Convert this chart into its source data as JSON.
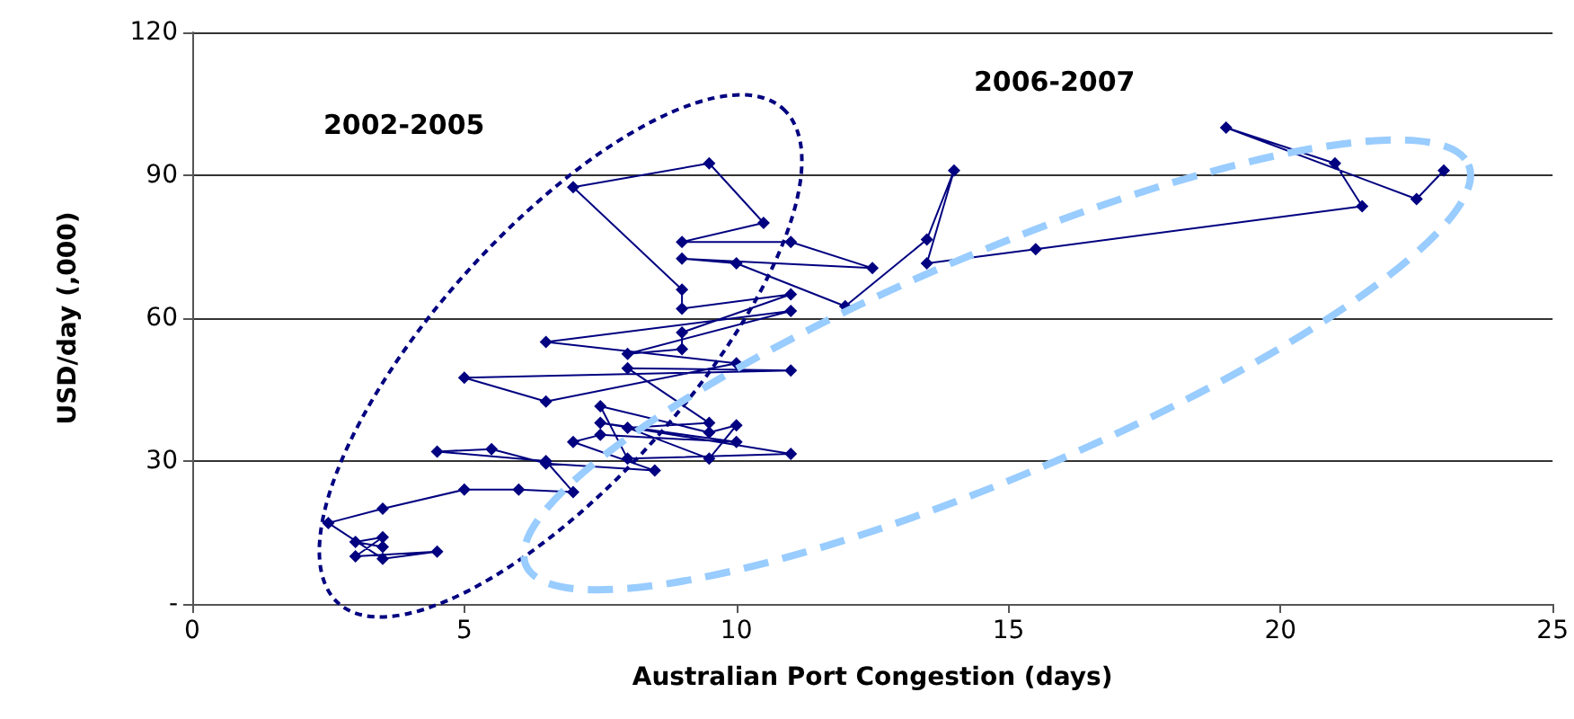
{
  "chart_data": {
    "type": "line",
    "xlabel": "Australian Port Congestion (days)",
    "ylabel": "USD/day (,000)",
    "annotations": [
      "2002-2005",
      "2006-2007"
    ],
    "series": [
      {
        "color": "#000080",
        "x": [
          3.5,
          3,
          3.5,
          3,
          4.5,
          3.5,
          2.5,
          3.5,
          5,
          6,
          7,
          6.5,
          4.5,
          5.5,
          6.5,
          8.5,
          7,
          7.5,
          10,
          7.5,
          11,
          8,
          7.5,
          9.5,
          10,
          9.5,
          8,
          9.5,
          8,
          11,
          5,
          6.5,
          10,
          6.5,
          11,
          8,
          9,
          9,
          11,
          9,
          9,
          7,
          9.5,
          10.5,
          9,
          11,
          12.5,
          9,
          10,
          12,
          13.5,
          14,
          13.5,
          15.5,
          21.5,
          21,
          19,
          22.5,
          23
        ],
        "values": [
          12,
          13,
          14,
          10,
          11,
          9.5,
          17,
          20,
          24,
          24,
          23.5,
          30,
          32,
          32.5,
          29.5,
          28,
          34,
          35.5,
          34,
          38,
          31.5,
          30.5,
          41.5,
          36,
          37.5,
          30.5,
          37,
          38,
          49.5,
          49,
          47.5,
          42.5,
          50.5,
          55,
          61.5,
          52.5,
          53.5,
          57,
          65,
          62,
          66,
          87.5,
          92.5,
          80,
          76,
          76,
          70.5,
          72.5,
          71.5,
          62.5,
          76.5,
          91,
          71.5,
          74.5,
          83.5,
          92.5,
          100,
          85,
          91
        ]
      }
    ],
    "xlim": [
      0,
      25
    ],
    "xticks": [
      0,
      5,
      10,
      15,
      20,
      25
    ],
    "ylim": [
      0,
      120
    ],
    "yticks": [
      {
        "value": 0,
        "label": "-"
      },
      30,
      60,
      90,
      120
    ],
    "grid": "y",
    "marker": "diamond",
    "line_style": "solid"
  }
}
